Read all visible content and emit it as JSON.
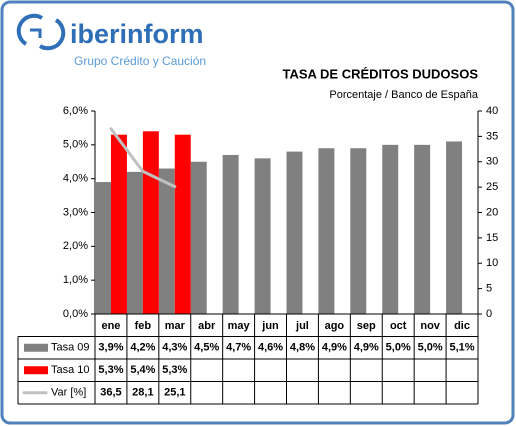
{
  "logo": {
    "name": "iberinform",
    "tagline": "Grupo Crédito y Caución"
  },
  "chart_data": {
    "type": "bar",
    "title": "TASA DE CRÉDITOS DUDOSOS",
    "subtitle": "Porcentaje / Banco de España",
    "categories": [
      "ene",
      "feb",
      "mar",
      "abr",
      "may",
      "jun",
      "jul",
      "ago",
      "sep",
      "oct",
      "nov",
      "dic"
    ],
    "series": [
      {
        "name": "Tasa 09",
        "color": "#808080",
        "type": "bar",
        "values": [
          3.9,
          4.2,
          4.3,
          4.5,
          4.7,
          4.6,
          4.8,
          4.9,
          4.9,
          5.0,
          5.0,
          5.1
        ],
        "value_labels": [
          "3,9%",
          "4,2%",
          "4,3%",
          "4,5%",
          "4,7%",
          "4,6%",
          "4,8%",
          "4,9%",
          "4,9%",
          "5,0%",
          "5,0%",
          "5,1%"
        ]
      },
      {
        "name": "Tasa 10",
        "color": "#ff0000",
        "type": "bar",
        "values": [
          5.3,
          5.4,
          5.3,
          null,
          null,
          null,
          null,
          null,
          null,
          null,
          null,
          null
        ],
        "value_labels": [
          "5,3%",
          "5,4%",
          "5,3%",
          null,
          null,
          null,
          null,
          null,
          null,
          null,
          null,
          null
        ]
      },
      {
        "name": "Var [%]",
        "color": "#c0c0c0",
        "type": "line",
        "axis": "y2",
        "values": [
          36.5,
          28.1,
          25.1,
          null,
          null,
          null,
          null,
          null,
          null,
          null,
          null,
          null
        ],
        "value_labels": [
          "36,5",
          "28,1",
          "25,1",
          null,
          null,
          null,
          null,
          null,
          null,
          null,
          null,
          null
        ]
      }
    ],
    "ylim": [
      0,
      6
    ],
    "yticks": [
      {
        "value": 0,
        "label": "0,0%"
      },
      {
        "value": 1,
        "label": "1,0%"
      },
      {
        "value": 2,
        "label": "2,0%"
      },
      {
        "value": 3,
        "label": "3,0%"
      },
      {
        "value": 4,
        "label": "4,0%"
      },
      {
        "value": 5,
        "label": "5,0%"
      },
      {
        "value": 6,
        "label": "6,0%"
      }
    ],
    "y2lim": [
      0,
      40
    ],
    "y2ticks": [
      0,
      5,
      10,
      15,
      20,
      25,
      30,
      35,
      40
    ],
    "grid": false
  }
}
